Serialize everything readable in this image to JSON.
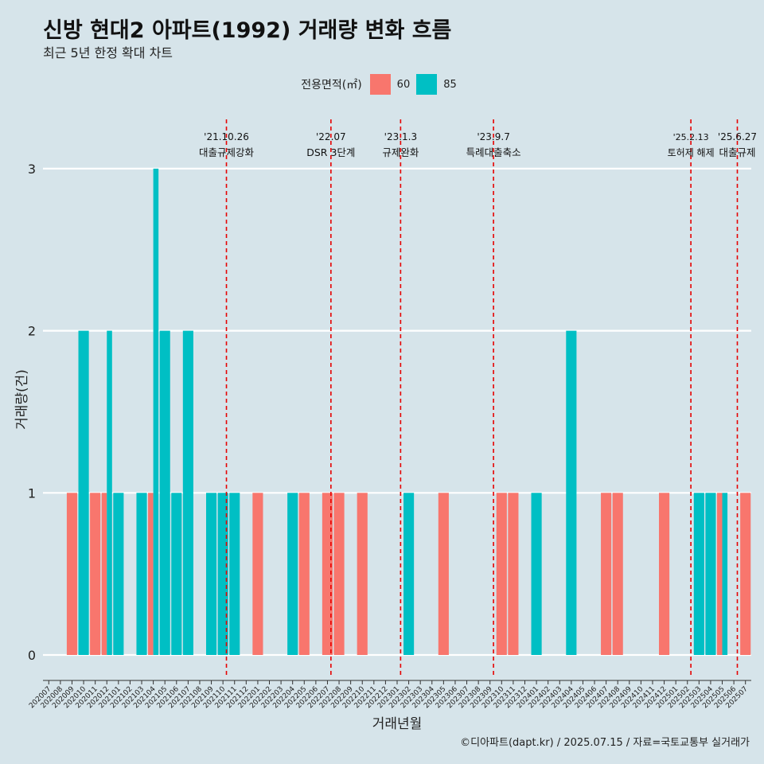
{
  "title": "신방 현대2 아파트(1992) 거래량 변화 흐름",
  "subtitle": "최근 5년 한정 확대 차트",
  "caption": "©디아파트(dapt.kr) / 2025.07.15 / 자료=국토교통부 실거래가",
  "legend": {
    "title": "전용면적(㎡)",
    "items": [
      {
        "label": "60",
        "color": "#f8766d"
      },
      {
        "label": "85",
        "color": "#00bfc4"
      }
    ]
  },
  "chart_data": {
    "type": "bar",
    "xlabel": "거래년월",
    "ylabel": "거래량(건)",
    "ylim": [
      0,
      3
    ],
    "yticks": [
      0,
      1,
      2,
      3
    ],
    "grid": true,
    "legend_position": "top",
    "categories": [
      "202007",
      "202008",
      "202009",
      "202010",
      "202011",
      "202012",
      "202101",
      "202102",
      "202103",
      "202104",
      "202105",
      "202106",
      "202107",
      "202108",
      "202109",
      "202110",
      "202111",
      "202112",
      "202201",
      "202202",
      "202203",
      "202204",
      "202205",
      "202206",
      "202207",
      "202208",
      "202209",
      "202210",
      "202211",
      "202212",
      "202301",
      "202302",
      "202303",
      "202304",
      "202305",
      "202306",
      "202307",
      "202308",
      "202309",
      "202310",
      "202311",
      "202312",
      "202401",
      "202402",
      "202403",
      "202404",
      "202405",
      "202406",
      "202407",
      "202408",
      "202409",
      "202410",
      "202411",
      "202412",
      "202501",
      "202502",
      "202503",
      "202504",
      "202505",
      "202506",
      "202507"
    ],
    "series": [
      {
        "name": "60",
        "color": "#f8766d",
        "values": [
          0,
          0,
          1,
          0,
          1,
          1,
          0,
          0,
          0,
          1,
          0,
          0,
          0,
          0,
          0,
          0,
          0,
          0,
          1,
          0,
          0,
          0,
          1,
          0,
          1,
          1,
          0,
          1,
          0,
          0,
          0,
          0,
          0,
          0,
          1,
          0,
          0,
          0,
          0,
          1,
          1,
          0,
          0,
          0,
          0,
          0,
          0,
          0,
          1,
          1,
          0,
          0,
          0,
          1,
          0,
          0,
          0,
          0,
          1,
          0,
          1
        ]
      },
      {
        "name": "85",
        "color": "#00bfc4",
        "values": [
          0,
          0,
          0,
          2,
          0,
          2,
          1,
          0,
          1,
          3,
          2,
          1,
          2,
          0,
          1,
          1,
          1,
          0,
          0,
          0,
          0,
          1,
          0,
          0,
          0,
          0,
          0,
          0,
          0,
          0,
          0,
          1,
          0,
          0,
          0,
          0,
          0,
          0,
          0,
          0,
          0,
          0,
          1,
          0,
          0,
          2,
          0,
          0,
          0,
          0,
          0,
          0,
          0,
          0,
          0,
          0,
          1,
          1,
          1,
          0,
          0
        ]
      }
    ],
    "events": [
      {
        "date": "'21.10.26",
        "label": "대출규제강화",
        "x_pos": 15.8
      },
      {
        "date": "'22.07",
        "label": "DSR 3단계",
        "x_pos": 24.8
      },
      {
        "date": "'23.1.3",
        "label": "규제완화",
        "x_pos": 30.8
      },
      {
        "date": "'23.9.7",
        "label": "특례대출축소",
        "x_pos": 38.8
      },
      {
        "date": "'25.2.13",
        "label": "토허제 해제",
        "x_pos": 55.8
      },
      {
        "date": "'25.6.27",
        "label": "대출규제",
        "x_pos": 59.8
      }
    ]
  }
}
